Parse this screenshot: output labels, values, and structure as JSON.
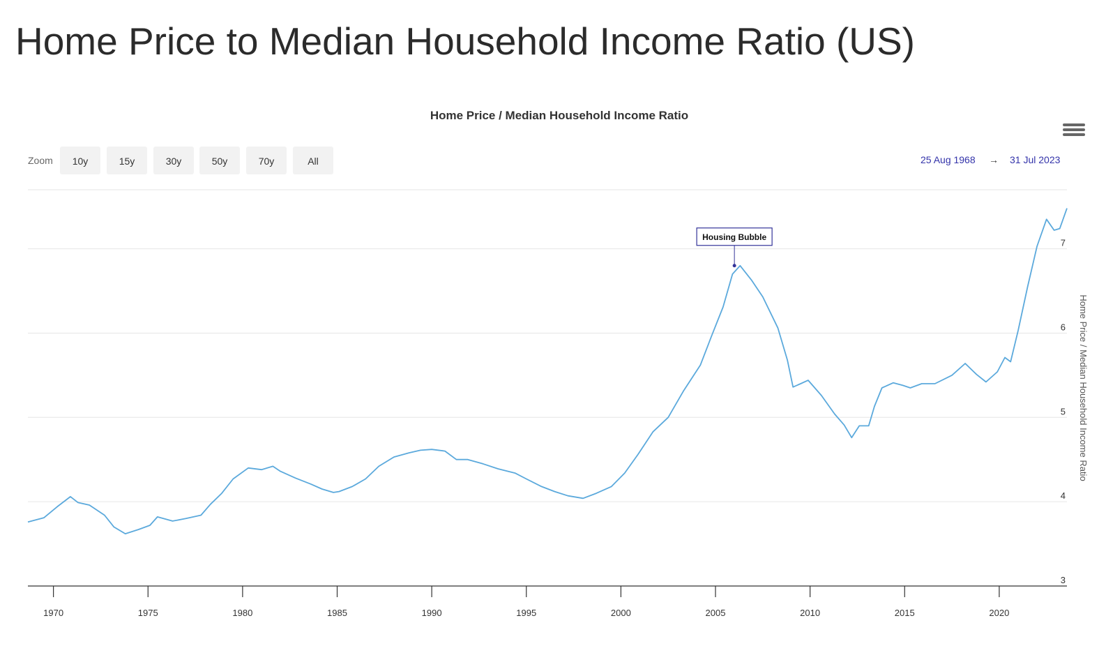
{
  "page": {
    "heading": "Home Price to Median Household Income Ratio (US)"
  },
  "toolbar": {
    "zoom_label": "Zoom",
    "zoom_buttons": [
      "10y",
      "15y",
      "30y",
      "50y",
      "70y",
      "All"
    ],
    "range_from": "25 Aug 1968",
    "range_arrow": "→",
    "range_to": "31 Jul 2023",
    "menu_icon": "hamburger-menu-icon"
  },
  "chart_data": {
    "type": "line",
    "title": "Home Price / Median Household Income Ratio",
    "xlabel": "",
    "ylabel": "Home Price / Median Household Income Ratio",
    "xlim": [
      1968.65,
      2023.58
    ],
    "ylim": [
      3,
      7.7
    ],
    "grid": true,
    "x_ticks": [
      1970,
      1975,
      1980,
      1985,
      1990,
      1995,
      2000,
      2005,
      2010,
      2015,
      2020
    ],
    "y_ticks": [
      3,
      4,
      5,
      6,
      7
    ],
    "line_color": "#5ba9dc",
    "annotation": {
      "text": "Housing Bubble",
      "x": 2006.0,
      "y": 6.8
    },
    "series": [
      {
        "x": [
          1968.65,
          1969.5,
          1970.2,
          1970.9,
          1971.3,
          1971.9,
          1972.7,
          1973.2,
          1973.8,
          1974.5,
          1975.1,
          1975.5,
          1976.3,
          1977.0,
          1977.8,
          1978.3,
          1978.9,
          1979.5,
          1980.3,
          1981.0,
          1981.6,
          1982.0,
          1982.8,
          1983.6,
          1984.2,
          1984.8,
          1985.1,
          1985.8,
          1986.5,
          1987.2,
          1988.0,
          1988.8,
          1989.4,
          1990.0,
          1990.7,
          1991.3,
          1991.9,
          1992.7,
          1993.5,
          1994.4,
          1995.0,
          1995.8,
          1996.5,
          1997.2,
          1998.0,
          1998.7,
          1999.5,
          2000.2,
          2000.9,
          2001.7,
          2002.5,
          2003.3,
          2004.2,
          2004.8,
          2005.4,
          2005.9,
          2006.3,
          2006.9,
          2007.5,
          2008.3,
          2008.8,
          2009.1,
          2009.5,
          2009.9,
          2010.6,
          2011.3,
          2011.8,
          2012.2,
          2012.6,
          2013.1,
          2013.4,
          2013.8,
          2014.4,
          2014.9,
          2015.3,
          2015.9,
          2016.6,
          2017.5,
          2018.2,
          2018.8,
          2019.3,
          2019.9,
          2020.3,
          2020.6,
          2021.0,
          2021.5,
          2022.0,
          2022.5,
          2022.9,
          2023.2,
          2023.58
        ],
        "y": [
          3.76,
          3.81,
          3.94,
          4.06,
          3.99,
          3.96,
          3.84,
          3.7,
          3.62,
          3.67,
          3.72,
          3.82,
          3.77,
          3.8,
          3.84,
          3.97,
          4.1,
          4.27,
          4.4,
          4.38,
          4.42,
          4.36,
          4.28,
          4.21,
          4.15,
          4.11,
          4.12,
          4.18,
          4.27,
          4.42,
          4.53,
          4.58,
          4.61,
          4.62,
          4.6,
          4.5,
          4.5,
          4.45,
          4.39,
          4.34,
          4.27,
          4.18,
          4.12,
          4.07,
          4.04,
          4.1,
          4.18,
          4.34,
          4.56,
          4.83,
          5.0,
          5.31,
          5.62,
          5.97,
          6.31,
          6.7,
          6.8,
          6.63,
          6.43,
          6.06,
          5.68,
          5.36,
          5.4,
          5.44,
          5.26,
          5.04,
          4.91,
          4.76,
          4.9,
          4.9,
          5.13,
          5.35,
          5.41,
          5.38,
          5.35,
          5.4,
          5.4,
          5.5,
          5.64,
          5.51,
          5.42,
          5.54,
          5.71,
          5.66,
          6.03,
          6.55,
          7.03,
          7.35,
          7.22,
          7.24,
          7.48
        ]
      }
    ]
  }
}
